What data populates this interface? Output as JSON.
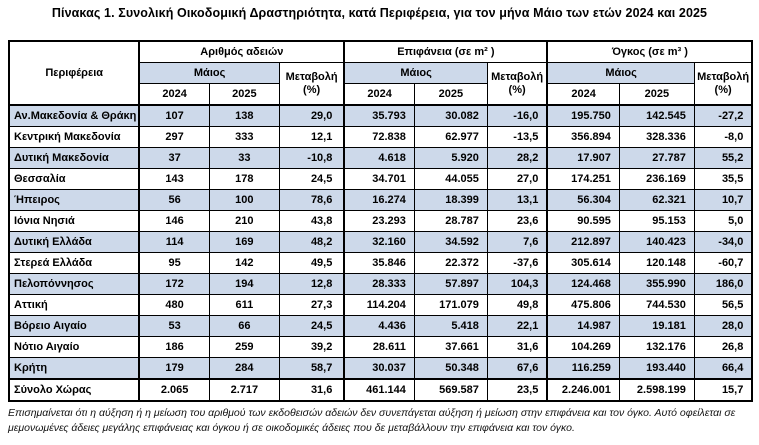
{
  "title": "Πίνακας 1. Συνολική Οικοδομική Δραστηριότητα, κατά Περιφέρεια, για τον μήνα Μάιο των ετών 2024 και 2025",
  "colors": {
    "row_highlight": "#CDD9EA",
    "border": "#000000",
    "background": "#FFFFFF"
  },
  "table": {
    "region_header": "Περιφέρεια",
    "groups": [
      {
        "label": "Αριθμός αδειών",
        "month_label": "Μάιος",
        "years": [
          "2024",
          "2025"
        ],
        "change_label": "Μεταβολή (%)"
      },
      {
        "label": "Επιφάνεια (σε m² )",
        "month_label": "Μάιος",
        "years": [
          "2024",
          "2025"
        ],
        "change_label": "Μεταβολή (%)"
      },
      {
        "label": "Όγκος (σε m³ )",
        "month_label": "Μάιος",
        "years": [
          "2024",
          "2025"
        ],
        "change_label": "Μεταβολή (%)"
      }
    ],
    "rows": [
      {
        "region": "Αν.Μακεδονία & Θράκη",
        "values": [
          "107",
          "138",
          "29,0",
          "35.793",
          "30.082",
          "-16,0",
          "195.750",
          "142.545",
          "-27,2"
        ],
        "is_total": false
      },
      {
        "region": "Κεντρική Μακεδονία",
        "values": [
          "297",
          "333",
          "12,1",
          "72.838",
          "62.977",
          "-13,5",
          "356.894",
          "328.336",
          "-8,0"
        ],
        "is_total": false
      },
      {
        "region": "Δυτική Μακεδονία",
        "values": [
          "37",
          "33",
          "-10,8",
          "4.618",
          "5.920",
          "28,2",
          "17.907",
          "27.787",
          "55,2"
        ],
        "is_total": false
      },
      {
        "region": "Θεσσαλία",
        "values": [
          "143",
          "178",
          "24,5",
          "34.701",
          "44.055",
          "27,0",
          "174.251",
          "236.169",
          "35,5"
        ],
        "is_total": false
      },
      {
        "region": "Ήπειρος",
        "values": [
          "56",
          "100",
          "78,6",
          "16.274",
          "18.399",
          "13,1",
          "56.304",
          "62.321",
          "10,7"
        ],
        "is_total": false
      },
      {
        "region": "Ιόνια Νησιά",
        "values": [
          "146",
          "210",
          "43,8",
          "23.293",
          "28.787",
          "23,6",
          "90.595",
          "95.153",
          "5,0"
        ],
        "is_total": false
      },
      {
        "region": "Δυτική Ελλάδα",
        "values": [
          "114",
          "169",
          "48,2",
          "32.160",
          "34.592",
          "7,6",
          "212.897",
          "140.423",
          "-34,0"
        ],
        "is_total": false
      },
      {
        "region": "Στερεά Ελλάδα",
        "values": [
          "95",
          "142",
          "49,5",
          "35.846",
          "22.372",
          "-37,6",
          "305.614",
          "120.148",
          "-60,7"
        ],
        "is_total": false
      },
      {
        "region": "Πελοπόννησος",
        "values": [
          "172",
          "194",
          "12,8",
          "28.333",
          "57.897",
          "104,3",
          "124.468",
          "355.990",
          "186,0"
        ],
        "is_total": false
      },
      {
        "region": "Αττική",
        "values": [
          "480",
          "611",
          "27,3",
          "114.204",
          "171.079",
          "49,8",
          "475.806",
          "744.530",
          "56,5"
        ],
        "is_total": false
      },
      {
        "region": "Βόρειο Αιγαίο",
        "values": [
          "53",
          "66",
          "24,5",
          "4.436",
          "5.418",
          "22,1",
          "14.987",
          "19.181",
          "28,0"
        ],
        "is_total": false
      },
      {
        "region": "Νότιο Αιγαίο",
        "values": [
          "186",
          "259",
          "39,2",
          "28.611",
          "37.661",
          "31,6",
          "104.269",
          "132.176",
          "26,8"
        ],
        "is_total": false
      },
      {
        "region": "Κρήτη",
        "values": [
          "179",
          "284",
          "58,7",
          "30.037",
          "50.348",
          "67,6",
          "116.259",
          "193.440",
          "66,4"
        ],
        "is_total": false
      },
      {
        "region": "Σύνολο Χώρας",
        "values": [
          "2.065",
          "2.717",
          "31,6",
          "461.144",
          "569.587",
          "23,5",
          "2.246.001",
          "2.598.199",
          "15,7"
        ],
        "is_total": true
      }
    ]
  },
  "footnote": "Επισημαίνεται ότι η αύξηση ή η μείωση του αριθμού των εκδοθεισών αδειών δεν συνεπάγεται αύξηση ή μείωση στην επιφάνεια και τον όγκο. Αυτό οφείλεται σε μεμονωμένες άδειες μεγάλης επιφάνειας και όγκου ή σε οικοδομικές άδειες που δε μεταβάλλουν την επιφάνεια και τον όγκο."
}
